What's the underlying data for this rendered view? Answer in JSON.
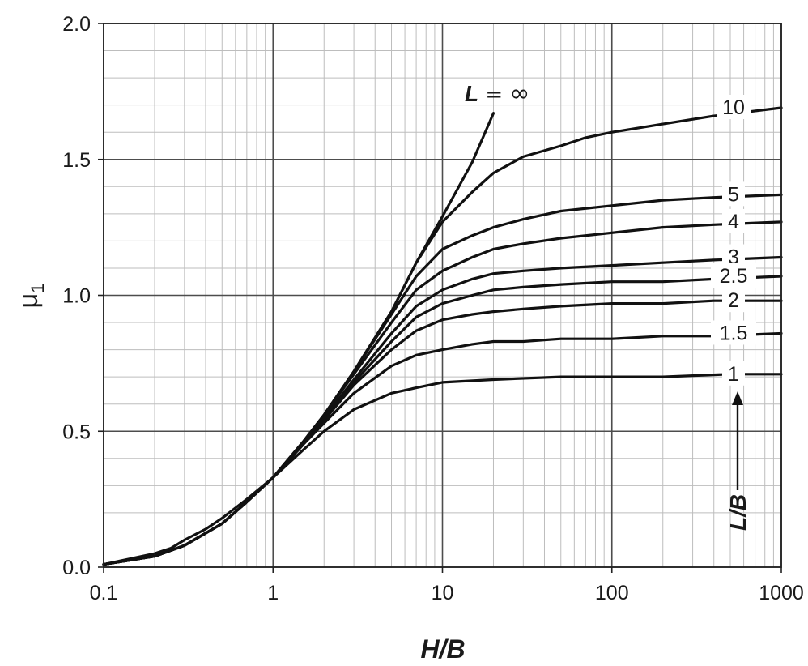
{
  "chart_data": {
    "type": "line",
    "title": "",
    "xlabel": "H/B",
    "ylabel": "μ1",
    "x_scale": "log",
    "xlim": [
      0.1,
      1000
    ],
    "ylim": [
      0.0,
      2.0
    ],
    "grid": true,
    "x_ticks": [
      "0.1",
      "1",
      "10",
      "100",
      "1000"
    ],
    "y_ticks": [
      "0.0",
      "0.5",
      "1.0",
      "1.5",
      "2.0"
    ],
    "legend_title": "L/B",
    "series": [
      {
        "label": "L = ∞",
        "label_parts": [
          "L",
          " = ",
          "∞"
        ],
        "x": [
          0.1,
          0.2,
          0.3,
          0.5,
          0.7,
          1,
          1.5,
          2,
          3,
          5,
          7,
          10,
          15,
          20
        ],
        "y": [
          0.01,
          0.04,
          0.08,
          0.16,
          0.24,
          0.33,
          0.46,
          0.56,
          0.72,
          0.94,
          1.12,
          1.29,
          1.49,
          1.67
        ]
      },
      {
        "label": "10",
        "x": [
          0.1,
          0.2,
          0.3,
          0.5,
          0.7,
          1,
          1.5,
          2,
          3,
          5,
          7,
          10,
          15,
          20,
          30,
          50,
          70,
          100,
          200,
          400,
          1000
        ],
        "y": [
          0.01,
          0.04,
          0.08,
          0.16,
          0.24,
          0.33,
          0.46,
          0.56,
          0.72,
          0.94,
          1.12,
          1.27,
          1.38,
          1.45,
          1.51,
          1.55,
          1.58,
          1.6,
          1.63,
          1.66,
          1.69
        ]
      },
      {
        "label": "5",
        "x": [
          0.1,
          0.2,
          0.3,
          0.5,
          0.7,
          1,
          1.5,
          2,
          3,
          5,
          7,
          10,
          15,
          20,
          30,
          50,
          100,
          200,
          400,
          1000
        ],
        "y": [
          0.01,
          0.04,
          0.08,
          0.16,
          0.24,
          0.33,
          0.46,
          0.56,
          0.72,
          0.93,
          1.07,
          1.17,
          1.22,
          1.25,
          1.28,
          1.31,
          1.33,
          1.35,
          1.36,
          1.37
        ]
      },
      {
        "label": "4",
        "x": [
          0.1,
          0.2,
          0.3,
          0.5,
          0.7,
          1,
          1.5,
          2,
          3,
          5,
          7,
          10,
          15,
          20,
          30,
          50,
          100,
          200,
          400,
          1000
        ],
        "y": [
          0.01,
          0.04,
          0.08,
          0.16,
          0.24,
          0.33,
          0.46,
          0.56,
          0.71,
          0.9,
          1.02,
          1.09,
          1.14,
          1.17,
          1.19,
          1.21,
          1.23,
          1.25,
          1.26,
          1.27
        ]
      },
      {
        "label": "3",
        "x": [
          0.1,
          0.2,
          0.3,
          0.5,
          0.7,
          1,
          1.5,
          2,
          3,
          5,
          7,
          10,
          15,
          20,
          30,
          50,
          100,
          200,
          400,
          1000
        ],
        "y": [
          0.01,
          0.04,
          0.08,
          0.16,
          0.24,
          0.33,
          0.45,
          0.55,
          0.69,
          0.86,
          0.96,
          1.02,
          1.06,
          1.08,
          1.09,
          1.1,
          1.11,
          1.12,
          1.13,
          1.14
        ]
      },
      {
        "label": "2.5",
        "x": [
          0.1,
          0.2,
          0.3,
          0.5,
          0.7,
          1,
          1.5,
          2,
          3,
          5,
          7,
          10,
          15,
          20,
          30,
          50,
          100,
          200,
          400,
          1000
        ],
        "y": [
          0.01,
          0.04,
          0.08,
          0.16,
          0.24,
          0.33,
          0.45,
          0.55,
          0.68,
          0.83,
          0.92,
          0.97,
          1.0,
          1.02,
          1.03,
          1.04,
          1.05,
          1.05,
          1.06,
          1.07
        ]
      },
      {
        "label": "2",
        "x": [
          0.1,
          0.2,
          0.3,
          0.5,
          0.7,
          1,
          1.5,
          2,
          3,
          5,
          7,
          10,
          15,
          20,
          30,
          50,
          100,
          200,
          400,
          1000
        ],
        "y": [
          0.01,
          0.04,
          0.08,
          0.16,
          0.24,
          0.33,
          0.45,
          0.54,
          0.67,
          0.8,
          0.87,
          0.91,
          0.93,
          0.94,
          0.95,
          0.96,
          0.97,
          0.97,
          0.98,
          0.98
        ]
      },
      {
        "label": "1.5",
        "x": [
          0.1,
          0.2,
          0.3,
          0.5,
          0.7,
          1,
          1.5,
          2,
          3,
          5,
          7,
          10,
          15,
          20,
          30,
          50,
          100,
          200,
          400,
          1000
        ],
        "y": [
          0.01,
          0.04,
          0.08,
          0.16,
          0.24,
          0.33,
          0.45,
          0.53,
          0.64,
          0.74,
          0.78,
          0.8,
          0.82,
          0.83,
          0.83,
          0.84,
          0.84,
          0.85,
          0.85,
          0.86
        ]
      },
      {
        "label": "1",
        "x": [
          0.1,
          0.2,
          0.25,
          0.3,
          0.4,
          0.5,
          0.7,
          1,
          1.5,
          2,
          3,
          5,
          7,
          10,
          20,
          50,
          100,
          200,
          500,
          1000
        ],
        "y": [
          0.01,
          0.05,
          0.07,
          0.1,
          0.14,
          0.18,
          0.25,
          0.33,
          0.43,
          0.5,
          0.58,
          0.64,
          0.66,
          0.68,
          0.69,
          0.7,
          0.7,
          0.7,
          0.71,
          0.71
        ]
      }
    ]
  }
}
